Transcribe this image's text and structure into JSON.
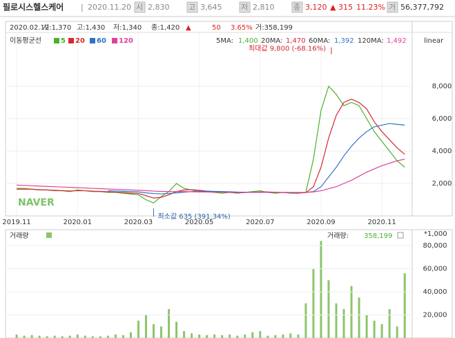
{
  "header": {
    "name": "필로시스헬스케어",
    "date": "2020.11.20",
    "open_label": "시",
    "open": "2,830",
    "high_label": "고",
    "high": "3,645",
    "low_label": "저",
    "low": "2,810",
    "close_label": "종",
    "close": "3,120",
    "change": "▲ 315",
    "change_pct": "11.23%",
    "volume_label": "거",
    "volume": "56,377,792"
  },
  "info": {
    "date": "2020.02.12",
    "open": "시:1,370",
    "high": "고:1,430",
    "low": "저:1,340",
    "close": "종:1,420",
    "arrow": "▲",
    "change": "50",
    "change_pct": "3.65%",
    "volume": "거:358,199"
  },
  "chart_data": [
    {
      "type": "line",
      "legend_title": "이동평균선",
      "scale_label": "linear",
      "watermark": "NAVER",
      "x": [
        0,
        0.25,
        0.5,
        0.75,
        1,
        1.25,
        1.5,
        1.75,
        2,
        2.25,
        2.5,
        2.75,
        3,
        3.25,
        3.5,
        3.75,
        4,
        4.25,
        4.5,
        4.75,
        5,
        5.25,
        5.5,
        5.75,
        6,
        6.25,
        6.5,
        6.75,
        7,
        7.25,
        7.5,
        7.75,
        8,
        8.25,
        8.5,
        8.75,
        9,
        9.25,
        9.5,
        9.75,
        10,
        10.25,
        10.5,
        10.75,
        11,
        11.25,
        11.5,
        11.75,
        12,
        12.25,
        12.5,
        12.75
      ],
      "xlim": [
        -0.32,
        12.95
      ],
      "xticks": [
        {
          "value": 0,
          "label": "2019.11"
        },
        {
          "value": 2,
          "label": "2020.01"
        },
        {
          "value": 4,
          "label": "2020.03"
        },
        {
          "value": 6,
          "label": "2020.05"
        },
        {
          "value": 8,
          "label": "2020.07"
        },
        {
          "value": 10,
          "label": "2020.09"
        },
        {
          "value": 12,
          "label": "2020.11"
        }
      ],
      "ylim": [
        0,
        11277
      ],
      "yticks": [
        {
          "value": 2000,
          "label": "2,000"
        },
        {
          "value": 4000,
          "label": "4,000"
        },
        {
          "value": 6000,
          "label": "6,000"
        },
        {
          "value": 8000,
          "label": "8,000"
        }
      ],
      "series": [
        {
          "name": "5",
          "ma_label": "5MA:",
          "ma_value": "1,400",
          "color": "#4caf2a",
          "values": [
            1700,
            1700,
            1650,
            1600,
            1600,
            1550,
            1550,
            1500,
            1600,
            1550,
            1500,
            1500,
            1450,
            1450,
            1400,
            1350,
            1300,
            1000,
            800,
            1200,
            1500,
            2000,
            1700,
            1600,
            1500,
            1500,
            1450,
            1400,
            1450,
            1400,
            1450,
            1500,
            1550,
            1450,
            1400,
            1450,
            1400,
            1400,
            1450,
            3500,
            6500,
            8000,
            7500,
            6800,
            7000,
            6800,
            6000,
            5200,
            4600,
            4000,
            3400,
            3000
          ]
        },
        {
          "name": "20",
          "ma_label": "20MA:",
          "ma_value": "1,470",
          "color": "#d8272d",
          "values": [
            1650,
            1650,
            1650,
            1620,
            1600,
            1580,
            1560,
            1540,
            1550,
            1550,
            1530,
            1510,
            1490,
            1470,
            1440,
            1410,
            1380,
            1250,
            1100,
            1150,
            1300,
            1500,
            1600,
            1620,
            1580,
            1530,
            1500,
            1470,
            1450,
            1440,
            1440,
            1460,
            1480,
            1480,
            1460,
            1440,
            1430,
            1420,
            1430,
            1800,
            3000,
            4800,
            6200,
            7000,
            7200,
            7000,
            6600,
            5800,
            5200,
            4700,
            4200,
            3800
          ]
        },
        {
          "name": "60",
          "ma_label": "60MA:",
          "ma_value": "1,392",
          "color": "#2d72c8",
          "values": [
            null,
            null,
            null,
            null,
            null,
            null,
            null,
            null,
            null,
            null,
            null,
            null,
            1550,
            1540,
            1520,
            1500,
            1480,
            1420,
            1380,
            1360,
            1380,
            1420,
            1460,
            1500,
            1520,
            1520,
            1510,
            1500,
            1490,
            1470,
            1460,
            1460,
            1460,
            1460,
            1450,
            1450,
            1440,
            1440,
            1450,
            1500,
            1800,
            2400,
            3000,
            3700,
            4300,
            4800,
            5200,
            5500,
            5600,
            5700,
            5650,
            5600
          ]
        },
        {
          "name": "120",
          "ma_label": "120MA:",
          "ma_value": "1,492",
          "color": "#e0409a",
          "values": [
            1900,
            1880,
            1860,
            1840,
            1820,
            1800,
            1780,
            1760,
            1740,
            1720,
            1700,
            1680,
            1660,
            1640,
            1620,
            1600,
            1580,
            1560,
            1530,
            1510,
            1500,
            1500,
            1500,
            1490,
            1480,
            1470,
            1460,
            1460,
            1450,
            1450,
            1450,
            1450,
            1450,
            1450,
            1450,
            1450,
            1450,
            1450,
            1450,
            1480,
            1550,
            1680,
            1800,
            2000,
            2200,
            2450,
            2700,
            2900,
            3100,
            3250,
            3400,
            3500
          ]
        }
      ],
      "annotations": [
        {
          "text": "최대값 9,800 (-68.16%)",
          "x": 10.34,
          "y": 9800
        },
        {
          "text": "최소값 635 (391.34%)",
          "x": 4.5,
          "y": 635
        }
      ]
    },
    {
      "type": "bar",
      "title": "거래량",
      "unit": "*1,000",
      "current_label": "거래량:",
      "current": "358,199",
      "color": "#8cc56a",
      "values": [
        3000,
        2000,
        2500,
        2000,
        1500,
        2000,
        1500,
        2000,
        3000,
        2000,
        1500,
        1500,
        2000,
        3000,
        2500,
        5000,
        15000,
        20000,
        12000,
        10000,
        25000,
        14000,
        6000,
        4000,
        3000,
        2500,
        3000,
        2500,
        3000,
        2000,
        3000,
        5000,
        6000,
        2000,
        2500,
        3000,
        4000,
        3000,
        30000,
        60000,
        84000,
        50000,
        30000,
        25000,
        45000,
        35000,
        20000,
        15000,
        12000,
        25000,
        10000,
        56000
      ],
      "ylim": [
        0,
        89550
      ],
      "yticks": [
        {
          "value": 20000,
          "label": "20,000"
        },
        {
          "value": 40000,
          "label": "40,000"
        },
        {
          "value": 60000,
          "label": "60,000"
        },
        {
          "value": 80000,
          "label": "80,000"
        }
      ]
    }
  ]
}
